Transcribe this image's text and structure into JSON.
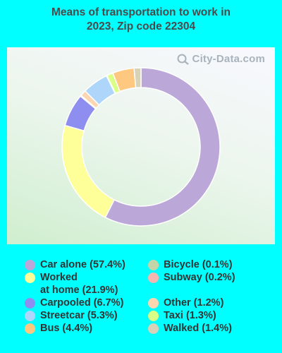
{
  "title_line1": "Means of transportation to work in",
  "title_line2": "2023, Zip code 22304",
  "watermark": "City-Data.com",
  "chart_data": {
    "type": "donut",
    "title": "Means of transportation to work in 2023, Zip code 22304",
    "series": [
      {
        "label": "Car alone (57.4%)",
        "name": "Car alone",
        "value": 57.4,
        "color": "#bba8d8"
      },
      {
        "label": "Worked\nat home (21.9%)",
        "name": "Worked at home",
        "value": 21.9,
        "color": "#ffff99"
      },
      {
        "label": "Carpooled (6.7%)",
        "name": "Carpooled",
        "value": 6.7,
        "color": "#8e8ef0"
      },
      {
        "label": "Streetcar (5.3%)",
        "name": "Streetcar",
        "value": 5.3,
        "color": "#aed6fb"
      },
      {
        "label": "Bus (4.4%)",
        "name": "Bus",
        "value": 4.4,
        "color": "#ffc881"
      },
      {
        "label": "Bicycle (0.1%)",
        "name": "Bicycle",
        "value": 0.1,
        "color": "#c4d6a8"
      },
      {
        "label": "Subway (0.2%)",
        "name": "Subway",
        "value": 0.2,
        "color": "#f6b7b0"
      },
      {
        "label": "Other (1.2%)",
        "name": "Other",
        "value": 1.2,
        "color": "#fcd6b0"
      },
      {
        "label": "Taxi (1.3%)",
        "name": "Taxi",
        "value": 1.3,
        "color": "#d9ff86"
      },
      {
        "label": "Walked (1.4%)",
        "name": "Walked",
        "value": 1.4,
        "color": "#d8d2b8"
      }
    ],
    "slice_order": [
      "Car alone",
      "Worked at home",
      "Carpooled",
      "Subway",
      "Other",
      "Streetcar",
      "Bicycle",
      "Taxi",
      "Bus",
      "Walked"
    ]
  }
}
